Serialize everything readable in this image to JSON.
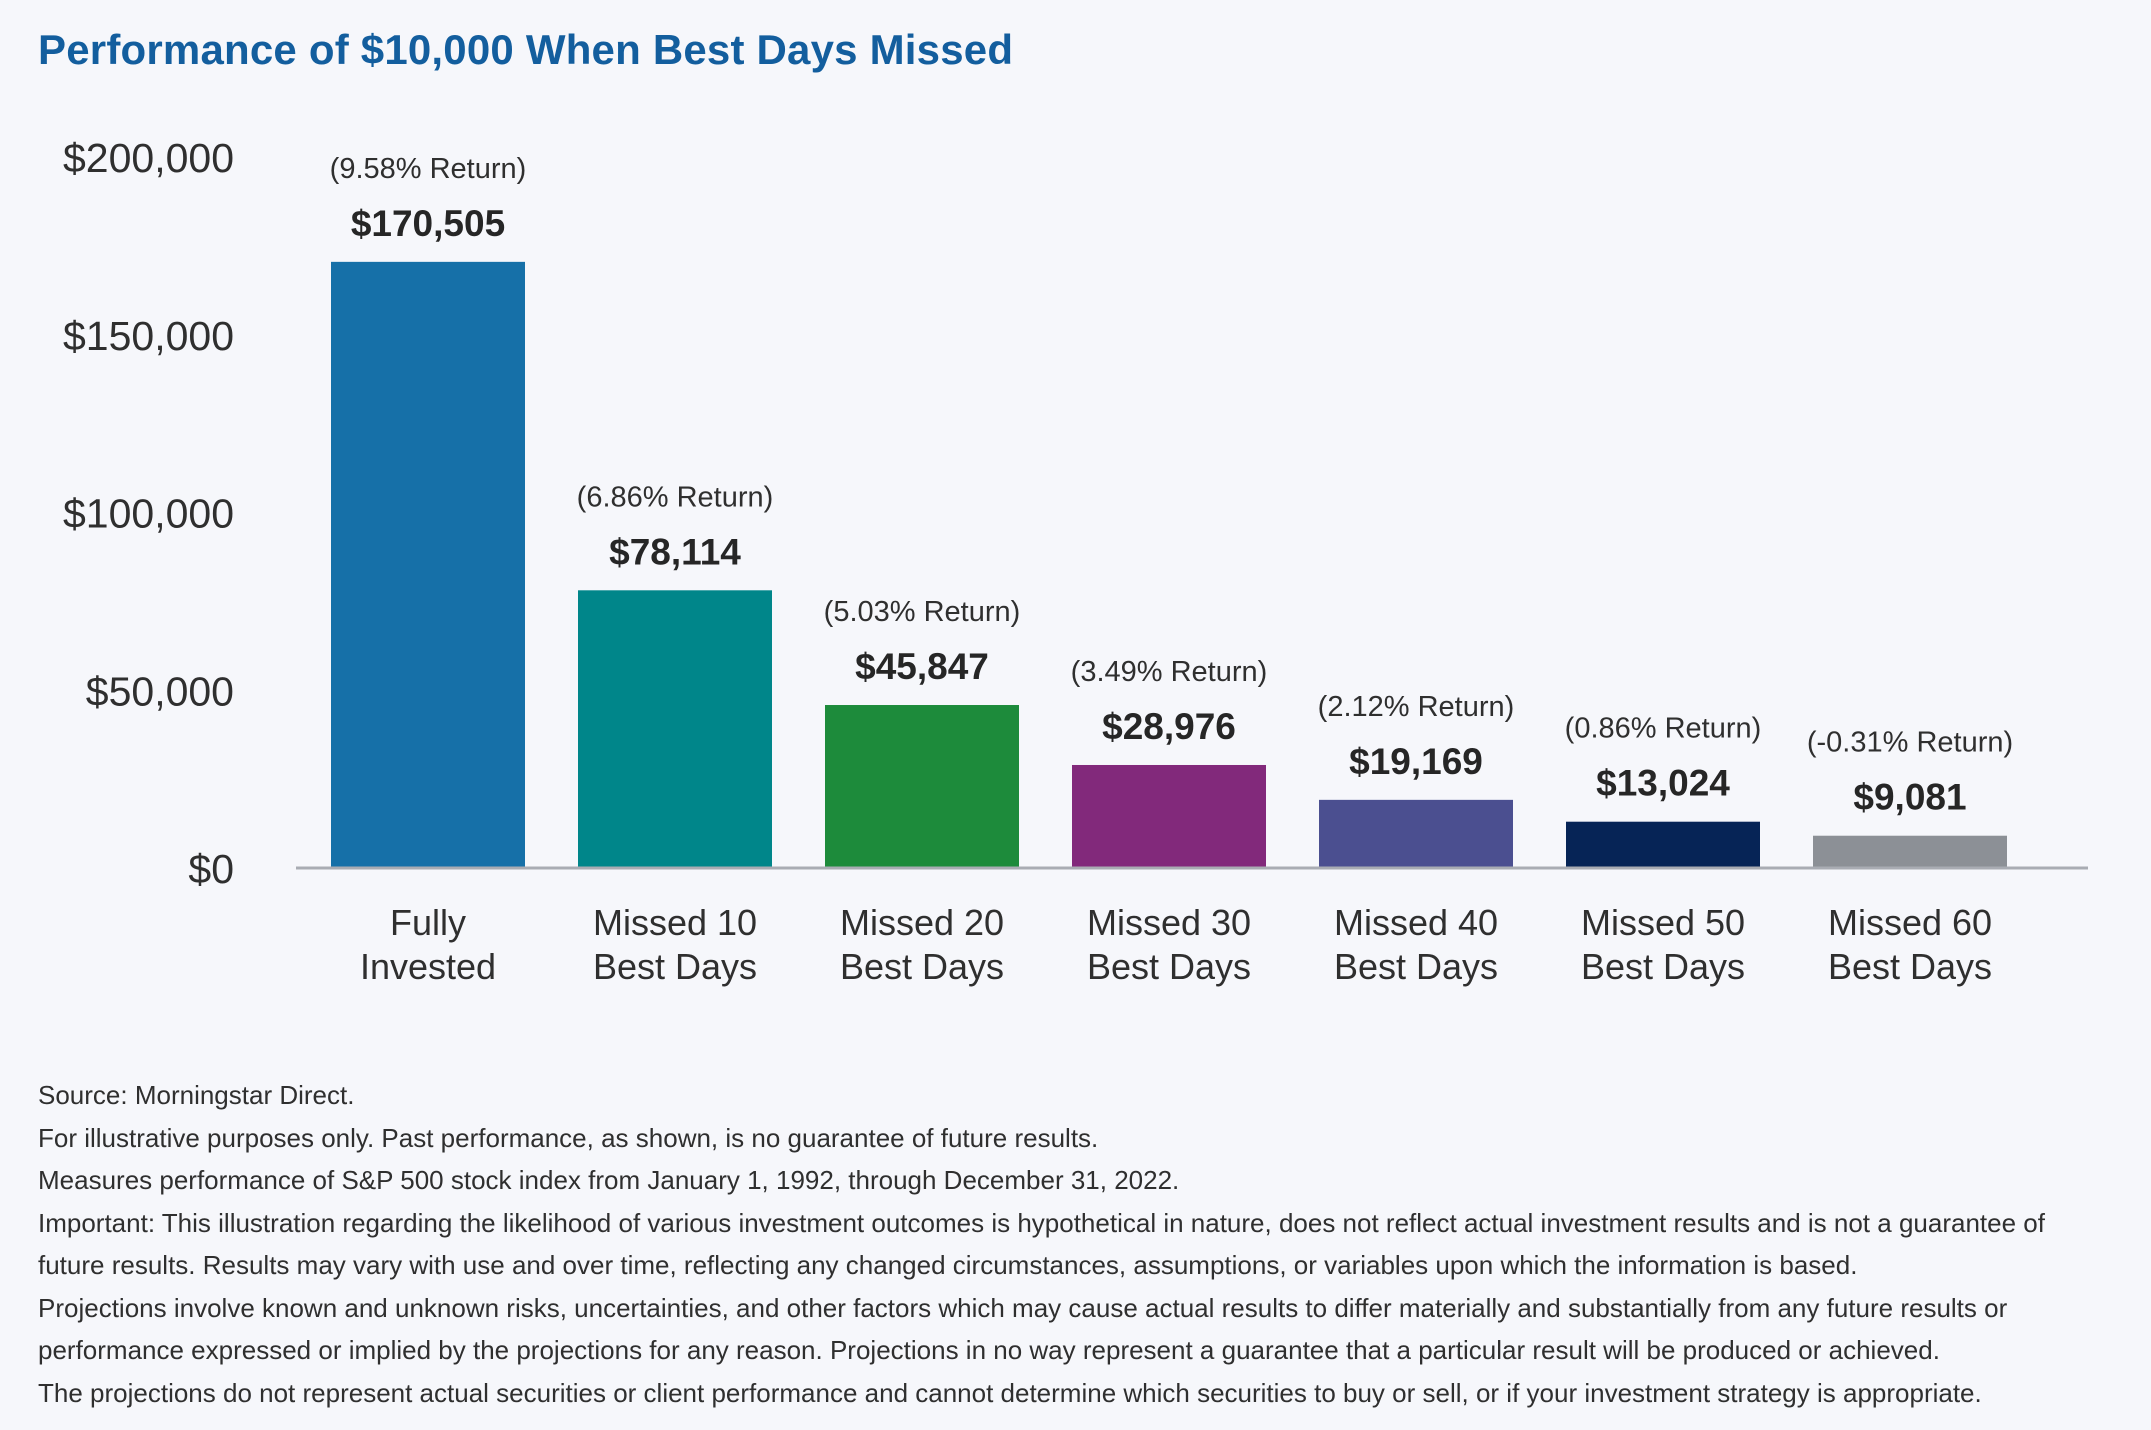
{
  "chart_data": {
    "type": "bar",
    "title": "Performance of $10,000 When Best Days Missed",
    "categories": [
      [
        "Fully",
        "Invested"
      ],
      [
        "Missed 10",
        "Best Days"
      ],
      [
        "Missed 20",
        "Best Days"
      ],
      [
        "Missed 30",
        "Best Days"
      ],
      [
        "Missed 40",
        "Best Days"
      ],
      [
        "Missed 50",
        "Best Days"
      ],
      [
        "Missed 60",
        "Best Days"
      ]
    ],
    "values": [
      170505,
      78114,
      45847,
      28976,
      19169,
      13024,
      9081
    ],
    "value_labels": [
      "$170,505",
      "$78,114",
      "$45,847",
      "$28,976",
      "$19,169",
      "$13,024",
      "$9,081"
    ],
    "return_labels": [
      "(9.58% Return)",
      "(6.86% Return)",
      "(5.03% Return)",
      "(3.49% Return)",
      "(2.12% Return)",
      "(0.86% Return)",
      "(-0.31% Return)"
    ],
    "colors": [
      "#1670a8",
      "#00868a",
      "#1d8b3b",
      "#82297b",
      "#4b4f90",
      "#062456",
      "#8c9096"
    ],
    "ylim": [
      0,
      200000
    ],
    "yticks": [
      0,
      50000,
      100000,
      150000,
      200000
    ],
    "ytick_labels": [
      "$0",
      "$50,000",
      "$100,000",
      "$150,000",
      "$200,000"
    ],
    "xlabel": "",
    "ylabel": "",
    "grid": false,
    "legend": "none"
  },
  "notes": [
    "Source: Morningstar Direct.",
    "For illustrative purposes only. Past performance, as shown, is no guarantee of future results.",
    "Measures performance of S&P 500 stock index from January 1, 1992, through December 31, 2022.",
    "Important: This illustration regarding the likelihood of various investment outcomes is hypothetical in nature, does not reflect actual investment results and is not a guarantee of future results. Results may vary with use and over time, reflecting any changed circumstances, assumptions, or variables upon which the information is based.",
    "Projections involve known and unknown risks, uncertainties, and other factors which may cause actual results to differ materially and substantially from any future results or performance expressed or implied by the projections for any reason. Projections in no way represent a guarantee that a particular result will be produced or achieved.",
    "The projections do not represent actual securities or client performance and cannot determine which securities to buy or sell, or if your investment strategy is appropriate."
  ]
}
